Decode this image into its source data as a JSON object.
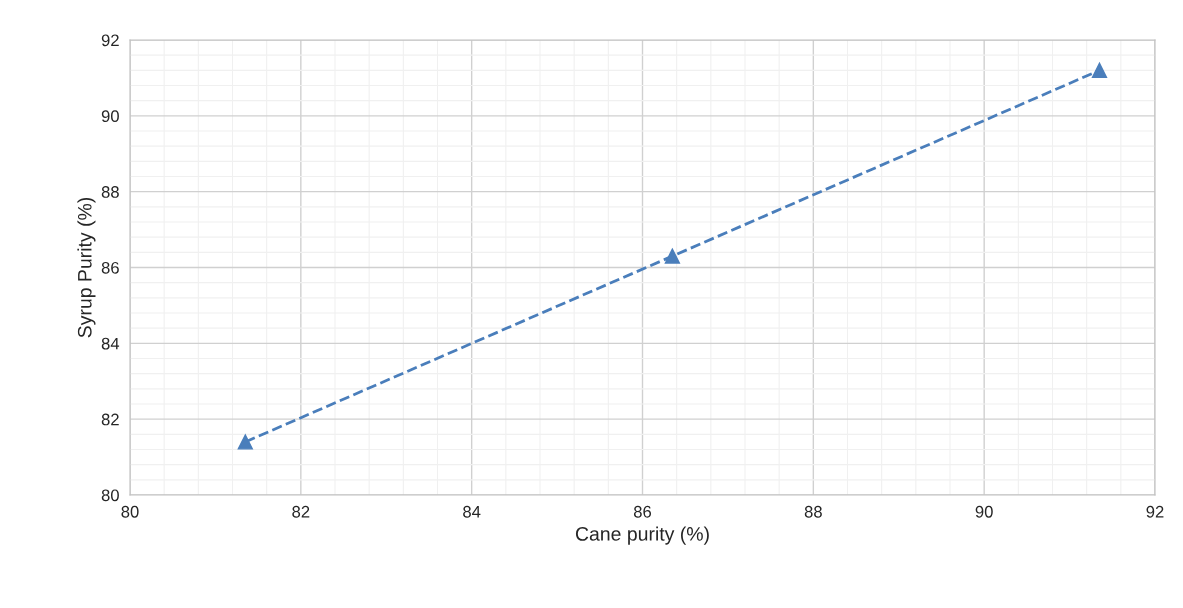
{
  "chart_data": {
    "type": "line",
    "xlabel": "Cane purity (%)",
    "ylabel": "Syrup Purity (%)",
    "x": [
      81.35,
      86.35,
      91.35
    ],
    "series": [
      {
        "color": "#4a7ebb",
        "values": [
          81.4,
          86.3,
          91.2
        ]
      }
    ],
    "marker": "triangle",
    "line_style": "dashed",
    "xlim": [
      80,
      92
    ],
    "xticks": [
      80,
      82,
      84,
      86,
      88,
      90,
      92
    ],
    "ylim": [
      80,
      92
    ],
    "yticks": [
      80,
      82,
      84,
      86,
      88,
      90,
      92
    ],
    "grid": true,
    "legend": false
  }
}
